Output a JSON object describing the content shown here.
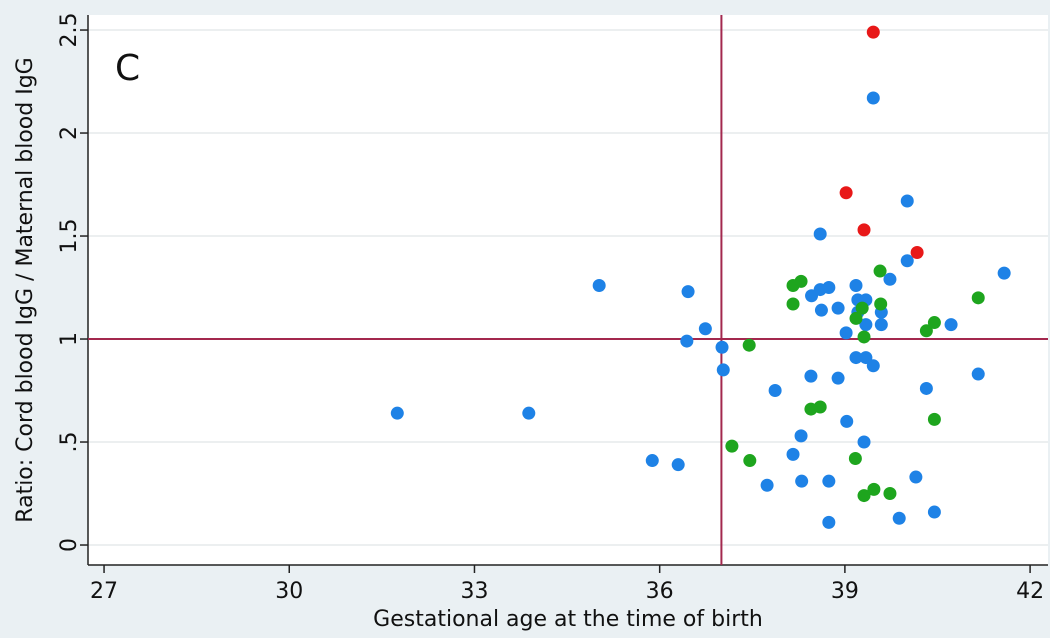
{
  "chart_data": {
    "type": "scatter",
    "panel_label": "C",
    "x_label": "Gestational age at the time of birth",
    "y_label": "Ratio: Cord blood IgG / Maternal blood IgG",
    "xlim": [
      26.74,
      42.29
    ],
    "ylim": [
      -0.097,
      2.573
    ],
    "xticks": [
      27,
      30,
      33,
      36,
      39,
      42
    ],
    "yticks": [
      0,
      {
        "value": 0.5,
        "label": ".5"
      },
      1,
      1.5,
      2,
      2.5
    ],
    "grid": true,
    "vlines": [
      37
    ],
    "hlines": [
      1
    ],
    "line_color": "#a3284e",
    "series": [
      {
        "color": "#1e82e6",
        "x": [
          31.75,
          33.88,
          35.02,
          36.46,
          36.44,
          36.74,
          37.01,
          37.03,
          35.88,
          36.3,
          37.87,
          37.74,
          38.16,
          38.29,
          38.3,
          38.45,
          38.46,
          38.6,
          38.74,
          38.6,
          38.62,
          38.89,
          38.89,
          39.03,
          38.74,
          38.74,
          39.02,
          39.18,
          39.21,
          39.21,
          39.34,
          39.34,
          39.18,
          39.34,
          39.46,
          39.31,
          39.46,
          39.59,
          39.59,
          39.73,
          40.01,
          40.01,
          39.88,
          40.15,
          40.32,
          40.45,
          40.72,
          41.16,
          41.58
        ],
        "values": [
          0.64,
          0.64,
          1.26,
          1.23,
          0.99,
          1.05,
          0.96,
          0.85,
          0.41,
          0.39,
          0.75,
          0.29,
          0.44,
          0.53,
          0.31,
          0.82,
          1.21,
          1.24,
          1.25,
          1.51,
          1.14,
          1.15,
          0.81,
          0.6,
          0.31,
          0.11,
          1.03,
          1.26,
          1.19,
          1.13,
          1.19,
          1.07,
          0.91,
          0.91,
          0.87,
          0.5,
          2.17,
          1.13,
          1.07,
          1.29,
          1.38,
          1.67,
          0.13,
          0.33,
          0.76,
          0.16,
          1.07,
          0.83,
          1.32
        ]
      },
      {
        "color": "#1ea51e",
        "x": [
          38.16,
          38.29,
          38.16,
          37.45,
          37.17,
          37.46,
          38.45,
          38.6,
          39.17,
          39.31,
          39.47,
          39.73,
          39.57,
          39.58,
          39.18,
          39.31,
          39.28,
          41.16,
          40.32,
          40.45,
          40.45
        ],
        "values": [
          1.26,
          1.28,
          1.17,
          0.97,
          0.48,
          0.41,
          0.66,
          0.67,
          0.42,
          0.24,
          0.27,
          0.25,
          1.33,
          1.17,
          1.1,
          1.01,
          1.15,
          1.2,
          1.04,
          1.08,
          0.61
        ]
      },
      {
        "color": "#e81818",
        "x": [
          39.46,
          39.02,
          39.31,
          40.17
        ],
        "values": [
          2.49,
          1.71,
          1.53,
          1.42
        ]
      }
    ]
  }
}
